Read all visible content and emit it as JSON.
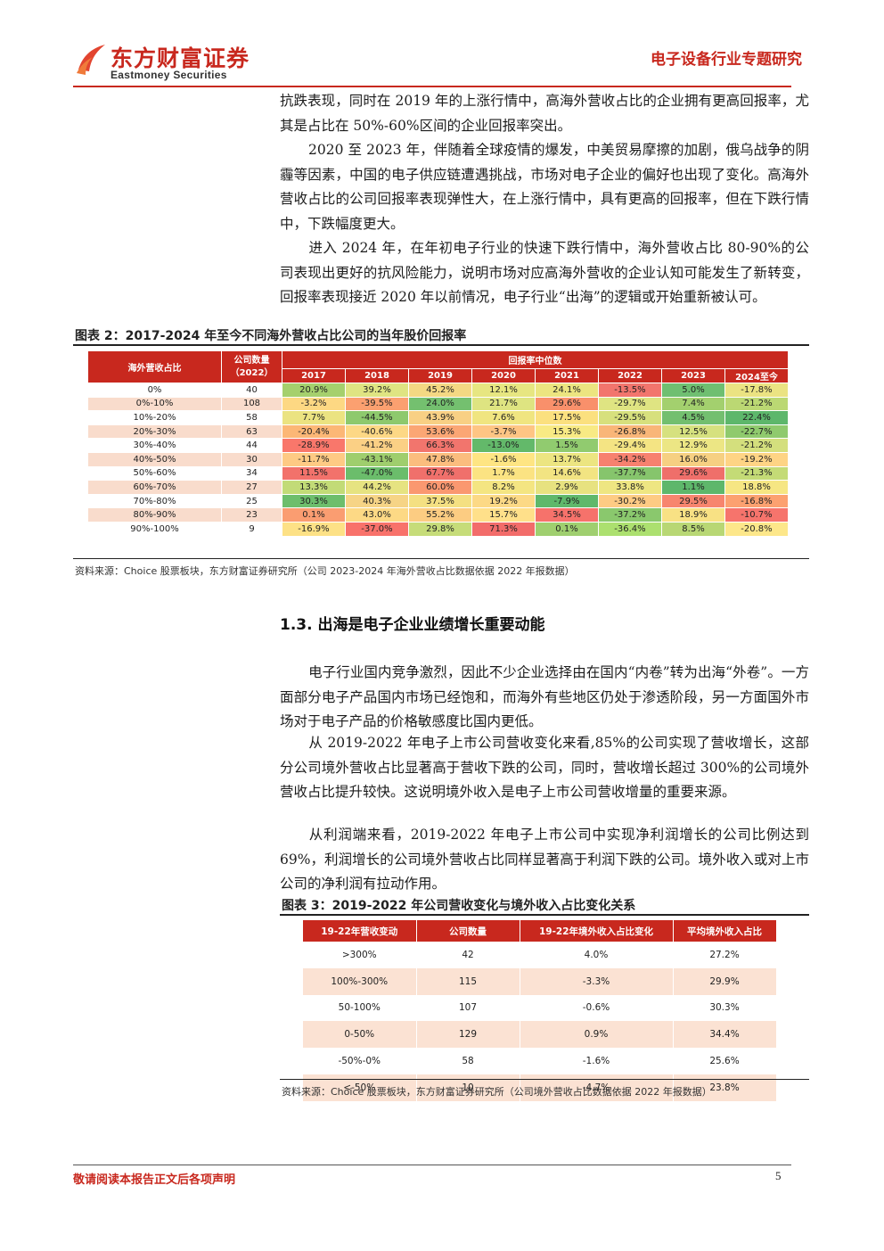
{
  "header": {
    "logo_cn": "东方财富证券",
    "logo_en": "Eastmoney Securities",
    "report_type": "电子设备行业专题研究"
  },
  "paragraphs": [
    "抗跌表现，同时在 2019 年的上涨行情中，高海外营收占比的企业拥有更高回报率，尤其是占比在 50%-60%区间的企业回报率突出。",
    "2020 至 2023 年，伴随着全球疫情的爆发，中美贸易摩擦的加剧，俄乌战争的阴霾等因素，中国的电子供应链遭遇挑战，市场对电子企业的偏好也出现了变化。高海外营收占比的公司回报率表现弹性大，在上涨行情中，具有更高的回报率，但在下跌行情中，下跌幅度更大。",
    "进入 2024 年，在年初电子行业的快速下跌行情中，海外营收占比 80-90%的公司表现出更好的抗风险能力，说明市场对应高海外营收的企业认知可能发生了新转变，回报率表现接近 2020 年以前情况，电子行业“出海”的逻辑或开始重新被认可。"
  ],
  "figure2": {
    "caption": "图表 2：2017-2024 年至今不同海外营收占比公司的当年股价回报率",
    "header_overseas": "海外营收占比",
    "header_count": "公司数量",
    "header_count_year": "（2022）",
    "header_return": "回报率中位数",
    "years": [
      "2017",
      "2018",
      "2019",
      "2020",
      "2021",
      "2022",
      "2023",
      "2024至今"
    ],
    "rows": [
      {
        "label": "0%",
        "count": "40",
        "values": [
          "20.9%",
          "39.2%",
          "45.2%",
          "12.1%",
          "24.1%",
          "-13.5%",
          "5.0%",
          "-17.8%"
        ],
        "colors": [
          "#a5d06d",
          "#dfe482",
          "#f4d883",
          "#e7e681",
          "#ece580",
          "#f2756d",
          "#6fbf71",
          "#ebe382"
        ]
      },
      {
        "label": "0%-10%",
        "count": "108",
        "values": [
          "-3.2%",
          "-39.5%",
          "24.0%",
          "21.7%",
          "29.6%",
          "-29.7%",
          "7.4%",
          "-21.2%"
        ],
        "colors": [
          "#fdd883",
          "#fba070",
          "#74c06f",
          "#dee481",
          "#f9906b",
          "#dfe482",
          "#a3d06e",
          "#bbd873"
        ]
      },
      {
        "label": "10%-20%",
        "count": "58",
        "values": [
          "7.7%",
          "-44.5%",
          "43.9%",
          "7.6%",
          "17.5%",
          "-29.5%",
          "4.5%",
          "22.4%"
        ],
        "colors": [
          "#ebe381",
          "#8ec96d",
          "#f8d084",
          "#f0e580",
          "#fbe07f",
          "#d7e07d",
          "#73bf6f",
          "#5db76b"
        ]
      },
      {
        "label": "20%-30%",
        "count": "63",
        "values": [
          "-20.4%",
          "-40.6%",
          "53.6%",
          "-3.7%",
          "15.3%",
          "-26.8%",
          "12.5%",
          "-22.7%"
        ],
        "colors": [
          "#fcb776",
          "#fdd885",
          "#fba674",
          "#fec584",
          "#f8ea84",
          "#f9b678",
          "#d6e17f",
          "#8fca6d"
        ]
      },
      {
        "label": "30%-40%",
        "count": "44",
        "values": [
          "-28.9%",
          "-41.2%",
          "66.3%",
          "-13.0%",
          "1.5%",
          "-29.4%",
          "12.9%",
          "-21.2%"
        ],
        "colors": [
          "#f9776b",
          "#fbd085",
          "#f2756d",
          "#63b96a",
          "#91cb6f",
          "#f4e483",
          "#ece684",
          "#d4df7d"
        ]
      },
      {
        "label": "40%-50%",
        "count": "30",
        "values": [
          "-11.7%",
          "-43.1%",
          "47.8%",
          "-1.6%",
          "13.7%",
          "-34.2%",
          "16.0%",
          "-19.2%"
        ],
        "colors": [
          "#feca84",
          "#9fce6d",
          "#fbbd7e",
          "#fee583",
          "#ece581",
          "#f7816f",
          "#f6d082",
          "#fed485"
        ]
      },
      {
        "label": "50%-60%",
        "count": "34",
        "values": [
          "11.5%",
          "-47.0%",
          "67.7%",
          "1.7%",
          "14.6%",
          "-37.7%",
          "29.6%",
          "-21.3%"
        ],
        "colors": [
          "#f2726b",
          "#6bbd6b",
          "#f0706b",
          "#fbe382",
          "#f2e482",
          "#86c56c",
          "#ef6f6a",
          "#c4db76"
        ]
      },
      {
        "label": "60%-70%",
        "count": "27",
        "values": [
          "13.3%",
          "44.2%",
          "60.0%",
          "8.2%",
          "2.9%",
          "33.8%",
          "1.1%",
          "18.8%"
        ],
        "colors": [
          "#c2db77",
          "#e6e381",
          "#fa9870",
          "#f4e582",
          "#e7e280",
          "#eee682",
          "#5eb76b",
          "#f6e683"
        ]
      },
      {
        "label": "70%-80%",
        "count": "25",
        "values": [
          "30.3%",
          "40.3%",
          "37.5%",
          "19.2%",
          "-7.9%",
          "-30.2%",
          "29.5%",
          "-16.8%"
        ],
        "colors": [
          "#6dbe6c",
          "#f6d486",
          "#f4e082",
          "#fcd986",
          "#5fb86b",
          "#fecb84",
          "#f7856e",
          "#fca170"
        ]
      },
      {
        "label": "80%-90%",
        "count": "23",
        "values": [
          "0.1%",
          "43.0%",
          "55.2%",
          "15.7%",
          "34.5%",
          "-37.2%",
          "18.9%",
          "-10.7%"
        ],
        "colors": [
          "#fa9d71",
          "#fdd985",
          "#fccc82",
          "#ffe08a",
          "#f6726b",
          "#8ac86d",
          "#f8e184",
          "#f6746c"
        ]
      },
      {
        "label": "90%-100%",
        "count": "9",
        "values": [
          "-16.9%",
          "-37.0%",
          "29.8%",
          "71.3%",
          "0.1%",
          "-36.4%",
          "8.5%",
          "-20.8%"
        ],
        "colors": [
          "#fde186",
          "#f8726b",
          "#c6dc79",
          "#f26c6a",
          "#9fcf6f",
          "#ace06f",
          "#b8d774",
          "#fde78a"
        ]
      }
    ],
    "source": "资料来源：Choice 股票板块，东方财富证券研究所（公司 2023-2024 年海外营收占比数据依据 2022 年报数据）"
  },
  "section": {
    "title": "1.3. 出海是电子企业业绩增长重要动能"
  },
  "paragraphs2": [
    "电子行业国内竞争激烈，因此不少企业选择由在国内“内卷”转为出海“外卷”。一方面部分电子产品国内市场已经饱和，而海外有些地区仍处于渗透阶段，另一方面国外市场对于电子产品的价格敏感度比国内更低。",
    "从 2019-2022 年电子上市公司营收变化来看,85%的公司实现了营收增长，这部分公司境外营收占比显著高于营收下跌的公司，同时，营收增长超过 300%的公司境外营收占比提升较快。这说明境外收入是电子上市公司营收增量的重要来源。",
    "从利润端来看，2019-2022 年电子上市公司中实现净利润增长的公司比例达到 69%，利润增长的公司境外营收占比同样显著高于利润下跌的公司。境外收入或对上市公司的净利润有拉动作用。"
  ],
  "figure3": {
    "caption": "图表 3：2019-2022 年公司营收变化与境外收入占比变化关系",
    "headers": [
      "19-22年营收变动",
      "公司数量",
      "19-22年境外收入占比变化",
      "平均境外收入占比"
    ],
    "rows": [
      [
        ">300%",
        "42",
        "4.0%",
        "27.2%"
      ],
      [
        "100%-300%",
        "115",
        "-3.3%",
        "29.9%"
      ],
      [
        "50-100%",
        "107",
        "-0.6%",
        "30.3%"
      ],
      [
        "0-50%",
        "129",
        "0.9%",
        "34.4%"
      ],
      [
        "-50%-0%",
        "58",
        "-1.6%",
        "25.6%"
      ],
      [
        "<-50%",
        "10",
        "-4.7%",
        "23.8%"
      ]
    ],
    "source": "资料来源：Choice 股票板块，东方财富证券研究所（公司境外营收占比数据依据 2022 年报数据）"
  },
  "footer": {
    "disclaimer": "敬请阅读本报告正文后各项声明",
    "page": "5"
  },
  "colors": {
    "brand_red": "#c8281e"
  }
}
